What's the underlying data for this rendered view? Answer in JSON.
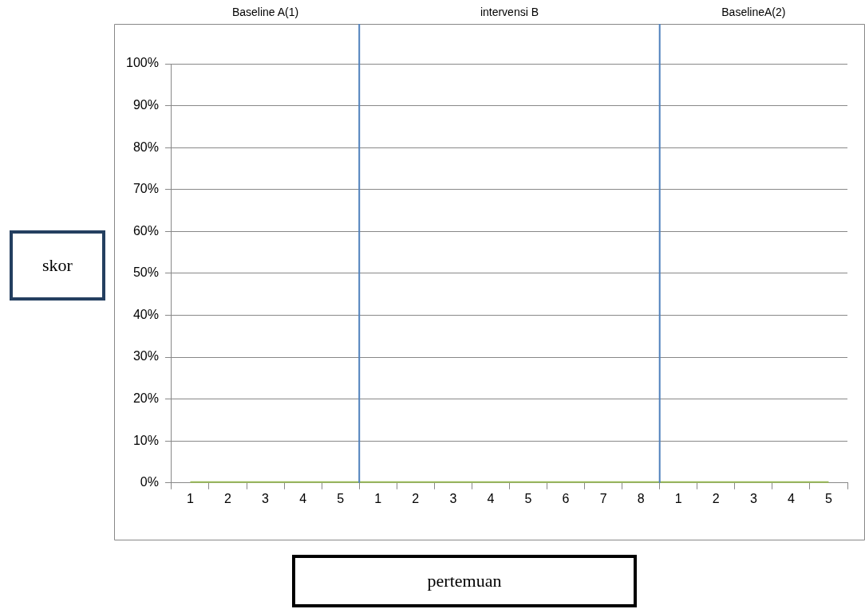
{
  "chart_data": {
    "type": "line",
    "xlabel": "pertemuan",
    "ylabel": "skor",
    "annotations": [
      "Baseline A(1)",
      "intervensi B",
      "BaselineA(2)"
    ],
    "categories": [
      "1",
      "2",
      "3",
      "4",
      "5",
      "1",
      "2",
      "3",
      "4",
      "5",
      "6",
      "7",
      "8",
      "1",
      "2",
      "3",
      "4",
      "5"
    ],
    "series": [
      {
        "color": "#9bbb59",
        "values": [
          0,
          0,
          0,
          0,
          0,
          0,
          0,
          0,
          0,
          0,
          0,
          0,
          0,
          0,
          0,
          0,
          0,
          0
        ]
      }
    ],
    "ylim": [
      0,
      100
    ],
    "yticks": [
      {
        "value": 0,
        "label": "0%"
      },
      {
        "value": 10,
        "label": "10%"
      },
      {
        "value": 20,
        "label": "20%"
      },
      {
        "value": 30,
        "label": "30%"
      },
      {
        "value": 40,
        "label": "40%"
      },
      {
        "value": 50,
        "label": "50%"
      },
      {
        "value": 60,
        "label": "60%"
      },
      {
        "value": 70,
        "label": "70%"
      },
      {
        "value": 80,
        "label": "80%"
      },
      {
        "value": 90,
        "label": "90%"
      },
      {
        "value": 100,
        "label": "100%"
      }
    ],
    "grid": "y",
    "legend": false,
    "marker": "none",
    "line_style": "solid"
  }
}
